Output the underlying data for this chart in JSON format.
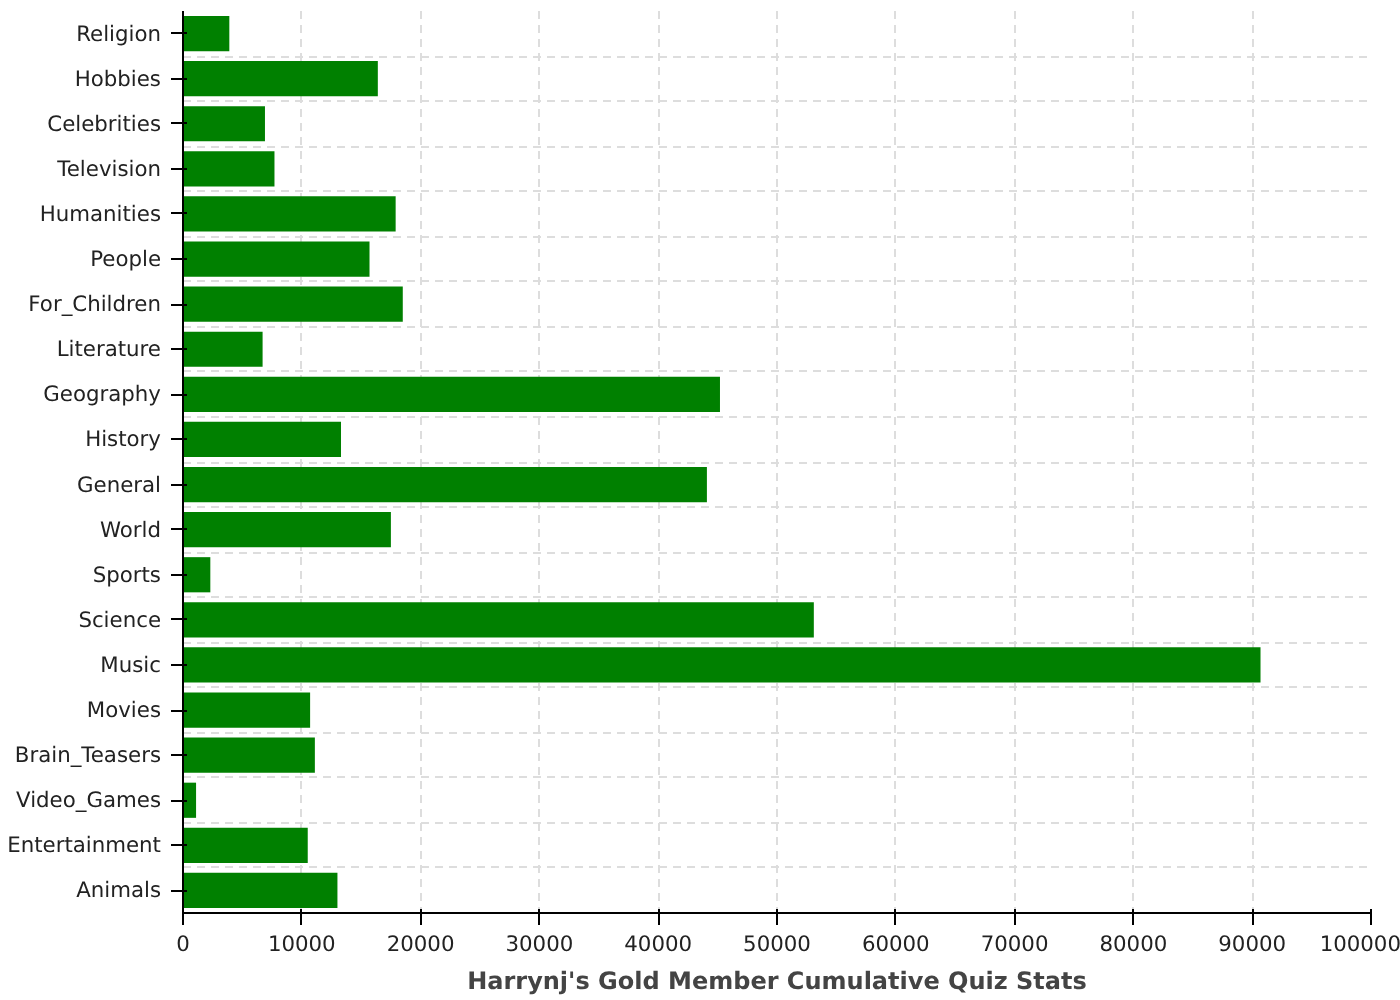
{
  "chart_data": {
    "type": "bar",
    "orientation": "horizontal",
    "xlabel": "Harrynj's Gold Member Cumulative Quiz Stats",
    "categories": [
      "Religion",
      "Hobbies",
      "Celebrities",
      "Television",
      "Humanities",
      "People",
      "For_Children",
      "Literature",
      "Geography",
      "History",
      "General",
      "World",
      "Sports",
      "Science",
      "Music",
      "Movies",
      "Brain_Teasers",
      "Video_Games",
      "Entertainment",
      "Animals"
    ],
    "values": [
      3900,
      16400,
      6900,
      7700,
      17900,
      15700,
      18500,
      6700,
      45200,
      13300,
      44100,
      17500,
      2300,
      53100,
      90700,
      10700,
      11100,
      1100,
      10500,
      13000
    ],
    "color": "#008000",
    "xlim": [
      0,
      100000
    ],
    "xticks": [
      0,
      10000,
      20000,
      30000,
      40000,
      50000,
      60000,
      70000,
      80000,
      90000,
      100000
    ],
    "grid": true
  }
}
